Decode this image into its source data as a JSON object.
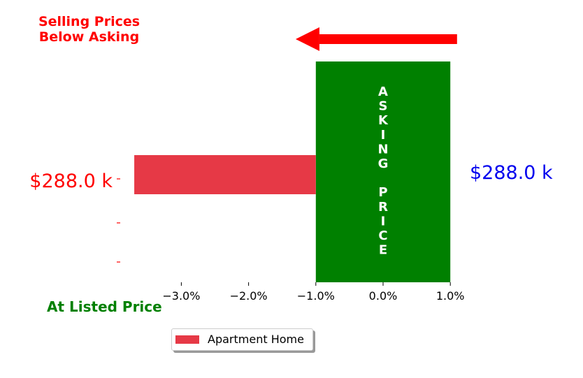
{
  "annotations": {
    "below_asking_line1": "Selling Prices",
    "below_asking_line2": "Below Asking",
    "at_listed": "At Listed Price",
    "asking_price_vertical": "ASKING PRICE",
    "left_price_label": "$288.0 k",
    "right_price_label": "$288.0 k"
  },
  "legend": {
    "label": "Apartment Home",
    "placement": "bottom-left"
  },
  "colors": {
    "bar": "#e63946",
    "asking_band": "#008000",
    "arrow": "#ff0000",
    "left_label": "#ff0000",
    "right_label": "#0000ee",
    "note_red": "#ff0000",
    "note_green": "#008000"
  },
  "chart_data": {
    "type": "bar",
    "orientation": "horizontal",
    "series": [
      {
        "name": "Apartment Home",
        "values": [
          -3.7
        ]
      }
    ],
    "bar_start": -1.0,
    "asking_band": [
      -1.0,
      1.0
    ],
    "x_ticks": [
      -3.0,
      -2.0,
      -1.0,
      0.0,
      1.0
    ],
    "x_tick_labels": [
      "−3.0%",
      "−2.0%",
      "−1.0%",
      "0.0%",
      "1.0%"
    ],
    "xlim": [
      -4.0,
      1.0
    ],
    "y_tick_labels": [
      "$288.0 k",
      "",
      ""
    ],
    "grid": false,
    "arrow": {
      "from": 1.1,
      "to": -1.3,
      "direction": "left"
    }
  }
}
